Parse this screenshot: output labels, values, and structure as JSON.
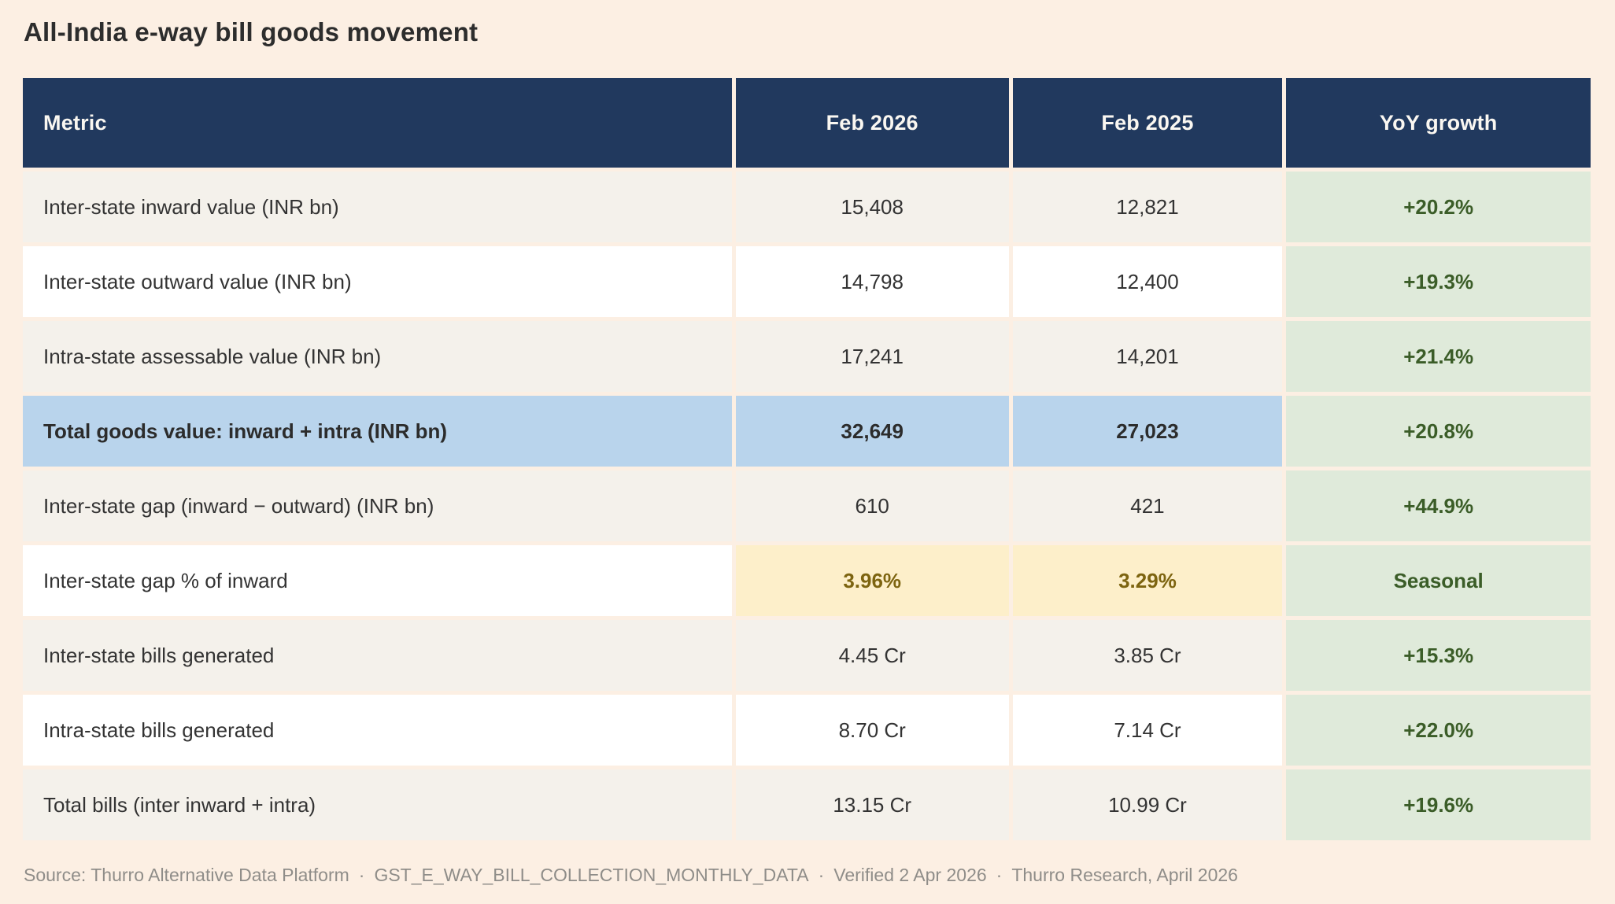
{
  "header": {
    "title": "All-India e-way bill goods movement"
  },
  "chart_data": {
    "type": "table",
    "title": "All-India e-way bill goods movement",
    "columns": [
      "Metric",
      "Feb 2026",
      "Feb 2025",
      "YoY growth"
    ],
    "rows": [
      {
        "metric": "Inter-state inward value (INR bn)",
        "feb2026": "15,408",
        "feb2025": "12,821",
        "yoy": "+20.2%",
        "row_style": "muted",
        "value_highlight": "none"
      },
      {
        "metric": "Inter-state outward value (INR bn)",
        "feb2026": "14,798",
        "feb2025": "12,400",
        "yoy": "+19.3%",
        "row_style": "white",
        "value_highlight": "none"
      },
      {
        "metric": "Intra-state assessable value (INR bn)",
        "feb2026": "17,241",
        "feb2025": "14,201",
        "yoy": "+21.4%",
        "row_style": "muted",
        "value_highlight": "none"
      },
      {
        "metric": "Total goods value: inward + intra (INR bn)",
        "feb2026": "32,649",
        "feb2025": "27,023",
        "yoy": "+20.8%",
        "row_style": "total",
        "value_highlight": "none"
      },
      {
        "metric": "Inter-state gap (inward − outward) (INR bn)",
        "feb2026": "610",
        "feb2025": "421",
        "yoy": "+44.9%",
        "row_style": "muted",
        "value_highlight": "none"
      },
      {
        "metric": "Inter-state gap % of inward",
        "feb2026": "3.96%",
        "feb2025": "3.29%",
        "yoy": "Seasonal",
        "row_style": "white",
        "value_highlight": "yellow"
      },
      {
        "metric": "Inter-state bills generated",
        "feb2026": "4.45 Cr",
        "feb2025": "3.85 Cr",
        "yoy": "+15.3%",
        "row_style": "muted",
        "value_highlight": "none"
      },
      {
        "metric": "Intra-state bills generated",
        "feb2026": "8.70 Cr",
        "feb2025": "7.14 Cr",
        "yoy": "+22.0%",
        "row_style": "white",
        "value_highlight": "none"
      },
      {
        "metric": "Total bills (inter inward + intra)",
        "feb2026": "13.15 Cr",
        "feb2025": "10.99 Cr",
        "yoy": "+19.6%",
        "row_style": "muted",
        "value_highlight": "none"
      }
    ]
  },
  "footer": {
    "source": "Source: Thurro Alternative Data Platform",
    "dataset": "GST_E_WAY_BILL_COLLECTION_MONTHLY_DATA",
    "verified": "Verified 2 Apr 2026",
    "attribution": "Thurro Research, April 2026",
    "sep": "·"
  },
  "colors": {
    "page_background": "#fcefe3",
    "header_background": "#21395e",
    "header_text": "#faf7f1",
    "row_muted": "#f4f1eb",
    "row_white": "#ffffff",
    "total_row_blue": "#b9d4ec",
    "yoy_green_background": "#dfeada",
    "yoy_green_text": "#3b5d28",
    "highlight_yellow_background": "#fdefca",
    "highlight_yellow_text": "#7d6410",
    "body_text": "#333333",
    "footer_text": "#8f8d89"
  }
}
